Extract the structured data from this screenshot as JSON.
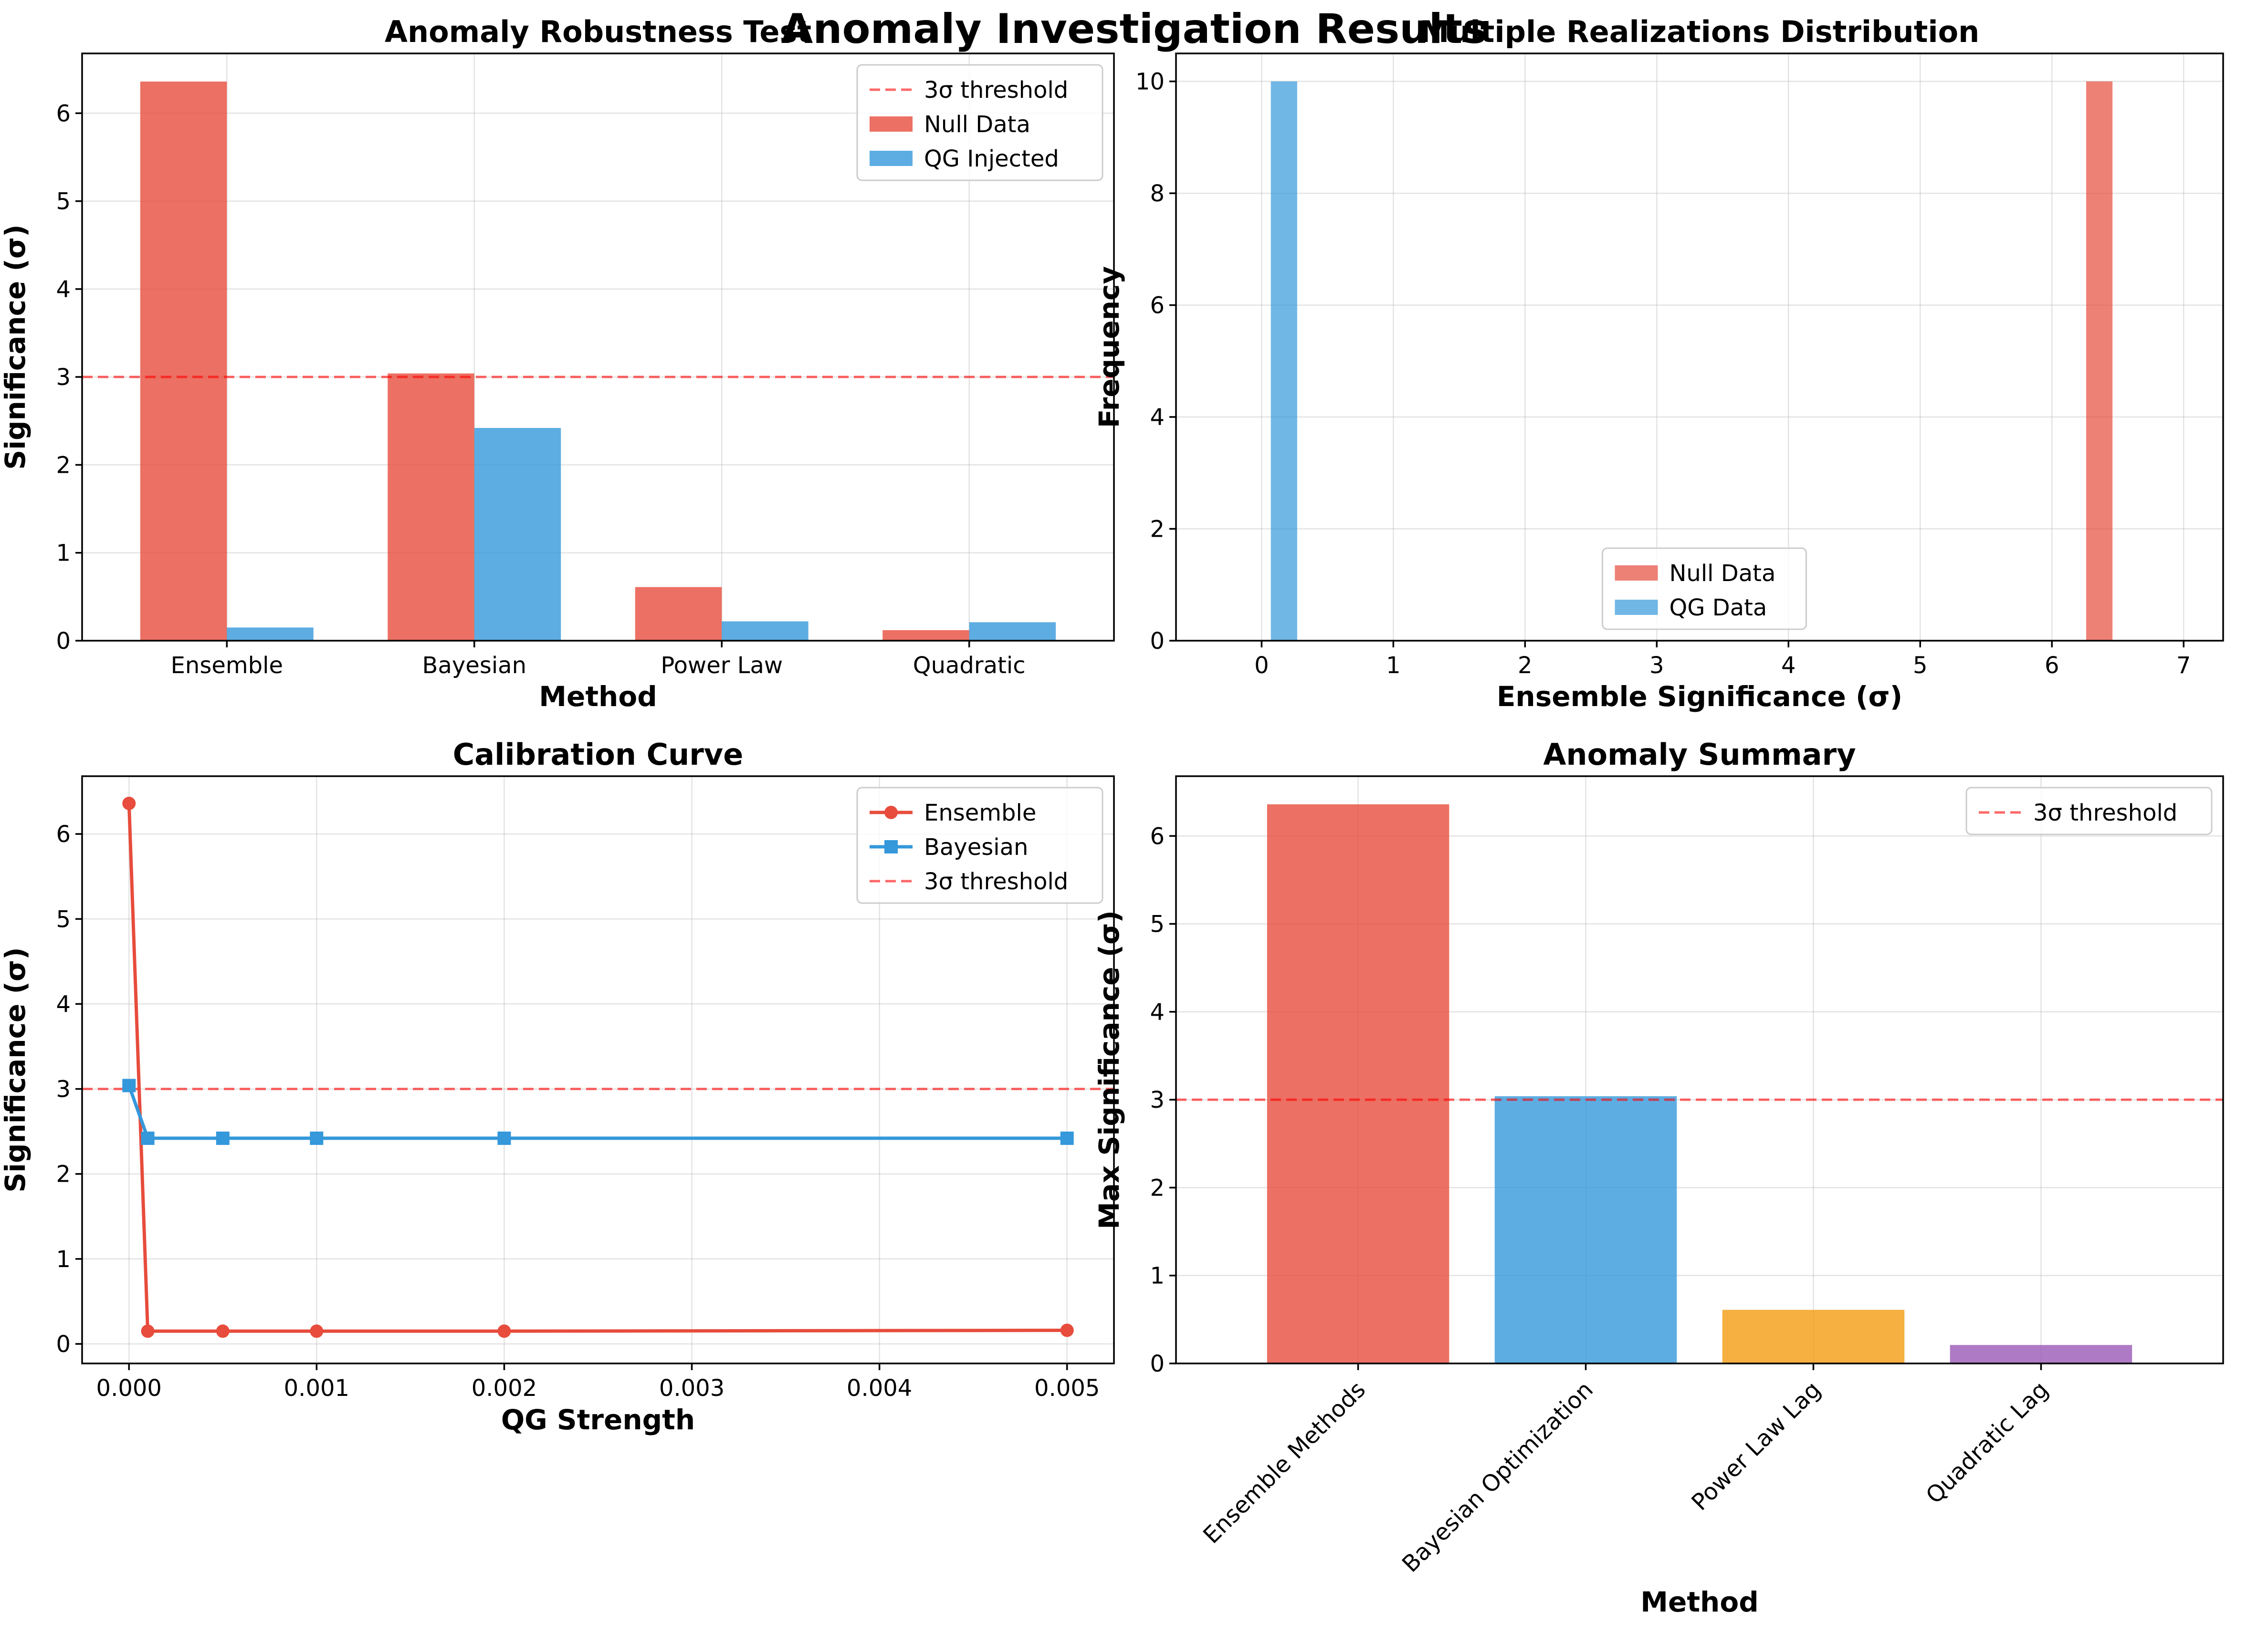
{
  "figure": {
    "suptitle": "Anomaly Investigation Results",
    "colors": {
      "null": "#e74c3c",
      "qg": "#3498db",
      "powerlaw": "#f39c12",
      "quadratic": "#9b59b6",
      "threshold": "#ff0000"
    }
  },
  "chart_data": [
    {
      "type": "bar",
      "title": "Anomaly Robustness Test",
      "xlabel": "Method",
      "ylabel": "Significance (σ)",
      "categories": [
        "Ensemble",
        "Bayesian",
        "Power Law",
        "Quadratic"
      ],
      "series": [
        {
          "name": "Null Data",
          "values": [
            6.36,
            3.04,
            0.61,
            0.12
          ]
        },
        {
          "name": "QG Injected",
          "values": [
            0.15,
            2.42,
            0.22,
            0.21
          ]
        }
      ],
      "threshold": {
        "value": 3,
        "label": "3σ threshold"
      },
      "ylim": [
        0,
        6.68
      ],
      "yticks": [
        0,
        1,
        2,
        3,
        4,
        5,
        6
      ],
      "grid": true,
      "legend": "upper-right"
    },
    {
      "type": "bar",
      "title": "Multiple Realizations Distribution",
      "xlabel": "Ensemble Significance (σ)",
      "ylabel": "Frequency",
      "series": [
        {
          "name": "Null Data",
          "bins": [
            {
              "from": 6.26,
              "to": 6.46,
              "count": 10
            }
          ]
        },
        {
          "name": "QG Data",
          "bins": [
            {
              "from": 0.07,
              "to": 0.27,
              "count": 10
            }
          ]
        }
      ],
      "xlim": [
        -0.65,
        7.3
      ],
      "ylim": [
        0,
        10.5
      ],
      "xticks": [
        0,
        1,
        2,
        3,
        4,
        5,
        6,
        7
      ],
      "yticks": [
        0,
        2,
        4,
        6,
        8,
        10
      ],
      "grid": true,
      "legend": "lower-center"
    },
    {
      "type": "line",
      "title": "Calibration Curve",
      "xlabel": "QG Strength",
      "ylabel": "Significance (σ)",
      "x": [
        0,
        0.0001,
        0.0005,
        0.001,
        0.002,
        0.005
      ],
      "series": [
        {
          "name": "Ensemble",
          "values": [
            6.36,
            0.15,
            0.15,
            0.15,
            0.15,
            0.16
          ],
          "marker": "circle"
        },
        {
          "name": "Bayesian",
          "values": [
            3.04,
            2.42,
            2.42,
            2.42,
            2.42,
            2.42
          ],
          "marker": "square"
        }
      ],
      "threshold": {
        "value": 3,
        "label": "3σ threshold"
      },
      "xlim": [
        -0.00025,
        0.00525
      ],
      "ylim": [
        -0.23,
        6.68
      ],
      "xticks": [
        "0.000",
        "0.001",
        "0.002",
        "0.003",
        "0.004",
        "0.005"
      ],
      "yticks": [
        0,
        1,
        2,
        3,
        4,
        5,
        6
      ],
      "grid": true,
      "legend": "upper-right"
    },
    {
      "type": "bar",
      "title": "Anomaly Summary",
      "xlabel": "Method",
      "ylabel": "Max Significance (σ)",
      "categories": [
        "Ensemble Methods",
        "Bayesian Optimization",
        "Power Law Lag",
        "Quadratic Lag"
      ],
      "values": [
        6.36,
        3.04,
        0.61,
        0.21
      ],
      "threshold": {
        "value": 3,
        "label": "3σ threshold"
      },
      "ylim": [
        0,
        6.68
      ],
      "yticks": [
        0,
        1,
        2,
        3,
        4,
        5,
        6
      ],
      "grid": true,
      "legend": "upper-right"
    }
  ]
}
